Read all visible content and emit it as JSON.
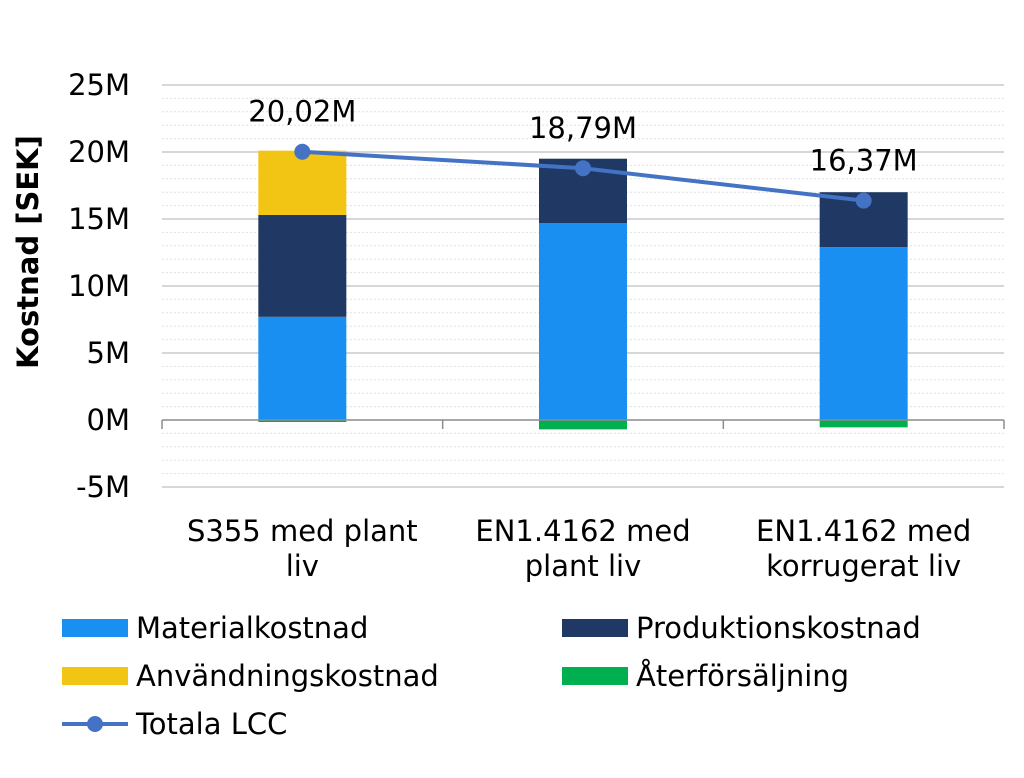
{
  "chart_data": {
    "type": "bar",
    "stacked": true,
    "title": "",
    "xlabel": "",
    "ylabel": "Kostnad [SEK]",
    "ylim": [
      -5,
      25
    ],
    "y_ticks": [
      -5,
      0,
      5,
      10,
      15,
      20,
      25
    ],
    "y_tick_labels": [
      "-5M",
      "0M",
      "5M",
      "10M",
      "15M",
      "20M",
      "25M"
    ],
    "grid": true,
    "legend_position": "bottom",
    "categories": [
      [
        "S355 med plant",
        "liv"
      ],
      [
        "EN1.4162 med",
        "plant liv"
      ],
      [
        "EN1.4162 med",
        "korrugerat liv"
      ]
    ],
    "series": [
      {
        "name": "Materialkostnad",
        "color": "#1a8ff2",
        "values": [
          7.7,
          14.7,
          12.9
        ]
      },
      {
        "name": "Produktionskostnad",
        "color": "#1f3864",
        "values": [
          7.6,
          4.8,
          4.1
        ]
      },
      {
        "name": "Användningskostnad",
        "color": "#f2c414",
        "values": [
          4.8,
          0,
          0
        ]
      },
      {
        "name": "Återförsäljning",
        "color": "#00b050",
        "values": [
          -0.15,
          -0.7,
          -0.55
        ]
      }
    ],
    "line": {
      "name": "Totala LCC",
      "color": "#4472c4",
      "values": [
        20.02,
        18.79,
        16.37
      ],
      "labels": [
        "20,02M",
        "18,79M",
        "16,37M"
      ]
    }
  }
}
